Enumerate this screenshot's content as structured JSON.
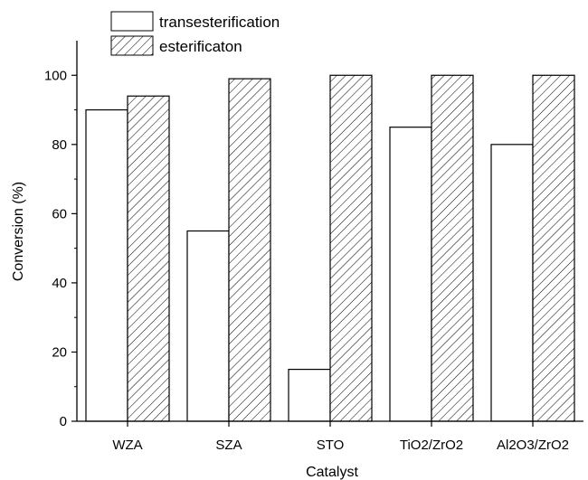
{
  "chart_data": {
    "type": "bar",
    "categories": [
      "WZA",
      "SZA",
      "STO",
      "TiO2/ZrO2",
      "Al2O3/ZrO2"
    ],
    "series": [
      {
        "name": "transesterification",
        "values": [
          90,
          55,
          15,
          85,
          80
        ],
        "pattern": "none"
      },
      {
        "name": "esterificaton",
        "values": [
          94,
          99,
          100,
          100,
          100
        ],
        "pattern": "diagonal-hatch"
      }
    ],
    "xlabel": "Catalyst",
    "ylabel": "Conversion (%)",
    "ylim": [
      0,
      110
    ],
    "yticks": [
      0,
      20,
      40,
      60,
      80,
      100
    ],
    "grid": false,
    "legend_position": "top-left",
    "colors": {
      "stroke": "#000000",
      "fill": "#ffffff"
    }
  }
}
